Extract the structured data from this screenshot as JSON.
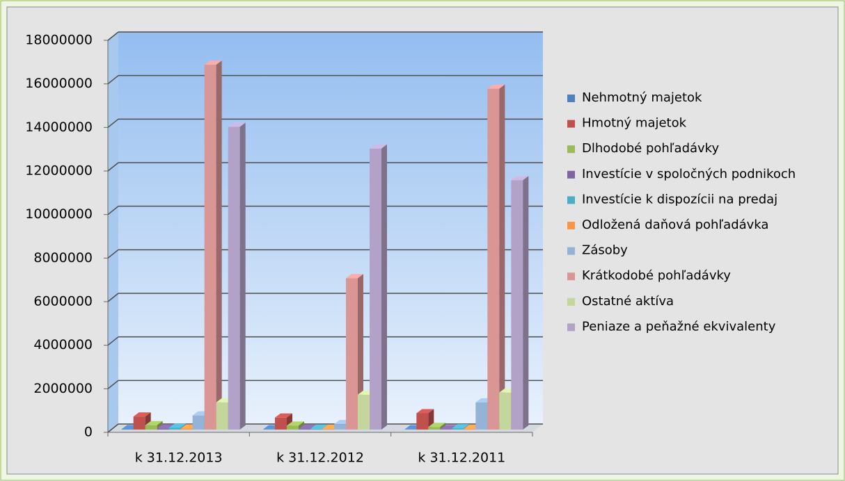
{
  "chart_data": {
    "type": "bar3d",
    "categories": [
      "k 31.12.2013",
      "k 31.12.2012",
      "k 31.12.2011"
    ],
    "series": [
      {
        "name": "Nehmotný majetok",
        "color": "#4F81BD",
        "values": [
          20000,
          10000,
          10000
        ]
      },
      {
        "name": "Hmotný majetok",
        "color": "#C0504D",
        "values": [
          600000,
          550000,
          750000
        ]
      },
      {
        "name": "Dlhodobé pohľadávky",
        "color": "#9BBB59",
        "values": [
          200000,
          180000,
          120000
        ]
      },
      {
        "name": "Investície v spoločných podnikoch",
        "color": "#8064A2",
        "values": [
          50000,
          30000,
          20000
        ]
      },
      {
        "name": "Investície k dispozícii na predaj",
        "color": "#4BACC6",
        "values": [
          80000,
          40000,
          60000
        ]
      },
      {
        "name": "Odložená daňová pohľadávka",
        "color": "#F79646",
        "values": [
          50000,
          40000,
          40000
        ]
      },
      {
        "name": "Zásoby",
        "color": "#95B3D7",
        "values": [
          650000,
          250000,
          1250000
        ]
      },
      {
        "name": "Krátkodobé pohľadávky",
        "color": "#D99694",
        "values": [
          16750000,
          6950000,
          15650000
        ]
      },
      {
        "name": "Ostatné aktíva",
        "color": "#C3D69B",
        "values": [
          1250000,
          1600000,
          1700000
        ]
      },
      {
        "name": "Peniaze a peňažné ekvivalenty",
        "color": "#B3A2C7",
        "values": [
          13900000,
          12900000,
          11450000
        ]
      }
    ],
    "ylim": [
      0,
      18000000
    ],
    "yticks": [
      0,
      2000000,
      4000000,
      6000000,
      8000000,
      10000000,
      12000000,
      14000000,
      16000000,
      18000000
    ],
    "grid": true,
    "legend": "right"
  }
}
